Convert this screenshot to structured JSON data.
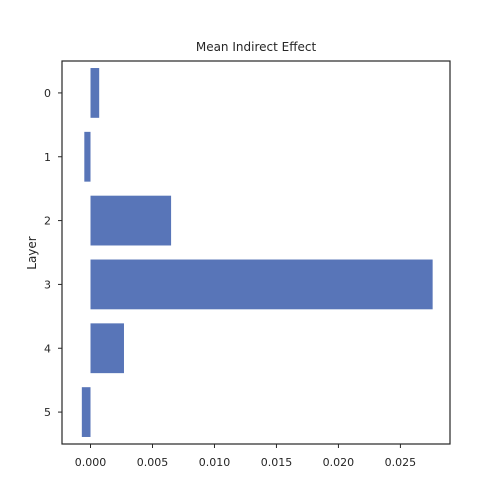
{
  "chart_data": {
    "type": "bar",
    "orientation": "horizontal",
    "title": "Mean Indirect Effect",
    "xlabel": "",
    "ylabel": "Layer",
    "categories": [
      "0",
      "1",
      "2",
      "3",
      "4",
      "5"
    ],
    "values": [
      0.0007,
      -0.0005,
      0.0065,
      0.0276,
      0.0027,
      -0.0007
    ],
    "xlim": [
      -0.0023,
      0.029
    ],
    "xticks": [
      "0.000",
      "0.005",
      "0.010",
      "0.015",
      "0.020",
      "0.025"
    ],
    "xtick_values": [
      0.0,
      0.005,
      0.01,
      0.015,
      0.02,
      0.025
    ],
    "grid": false,
    "bar_color": "#5875b8"
  }
}
